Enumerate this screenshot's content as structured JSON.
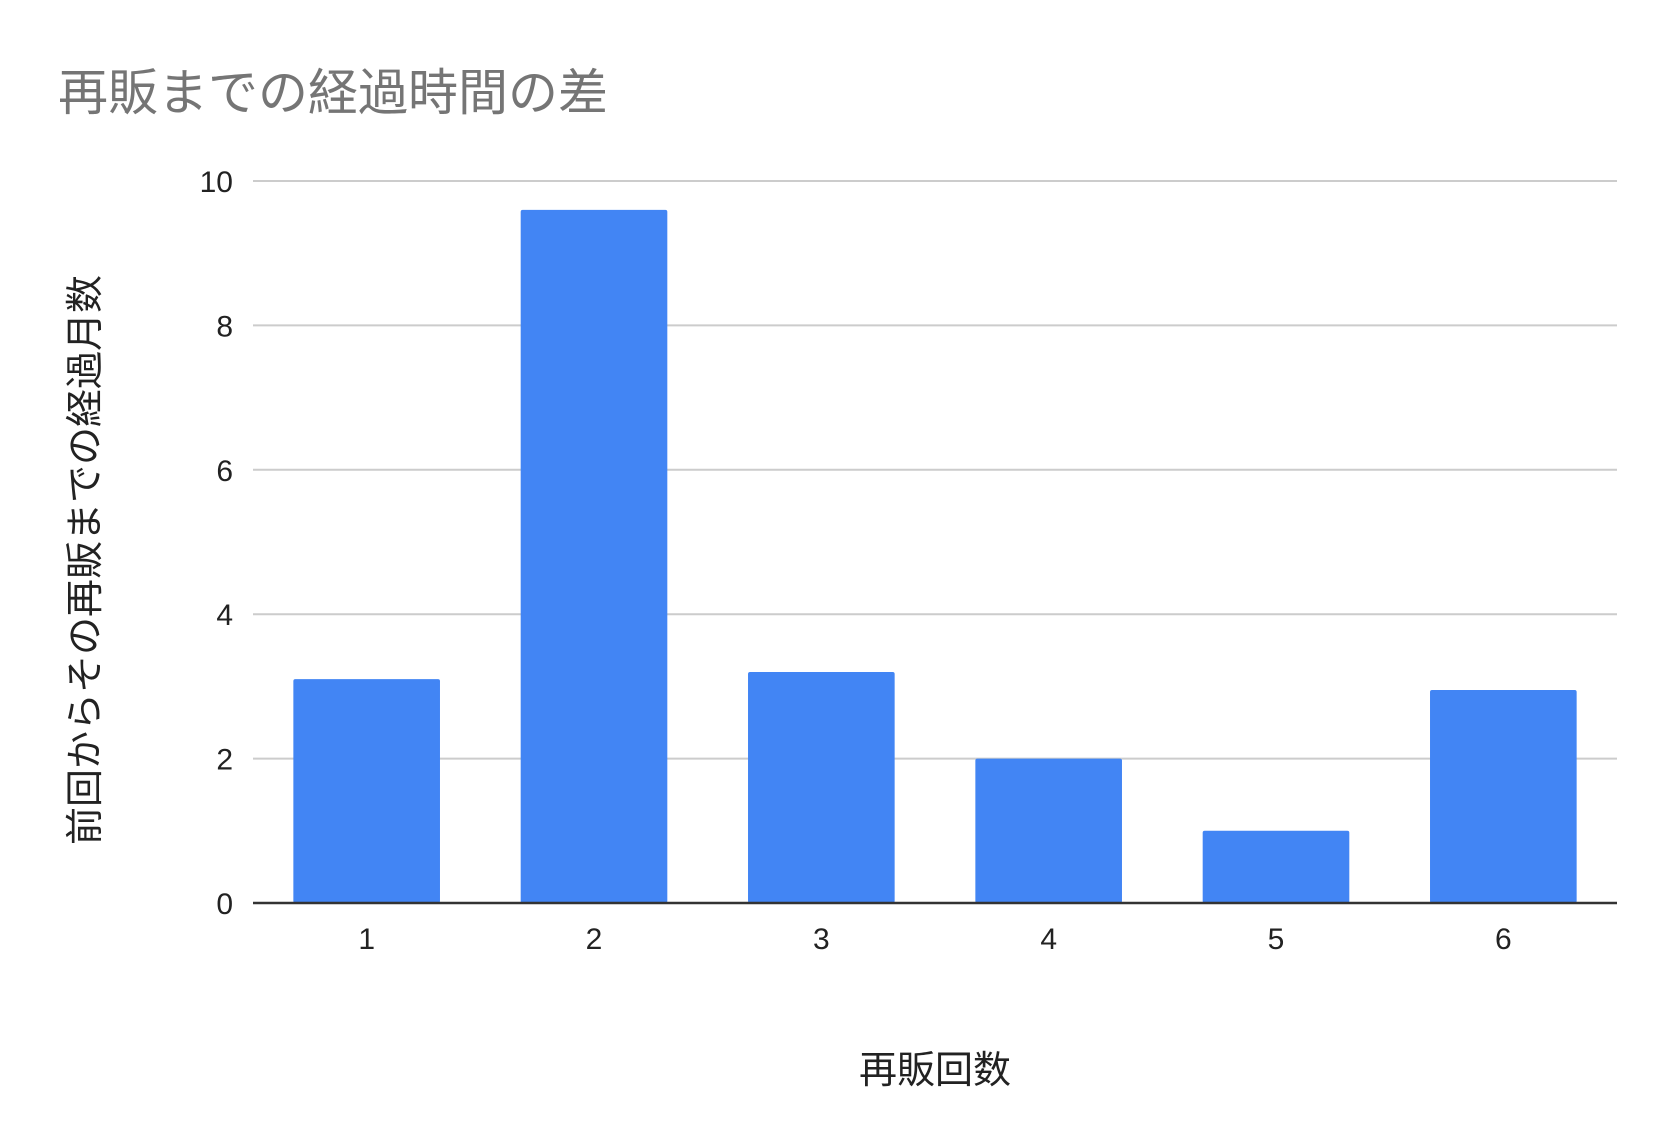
{
  "chart_data": {
    "type": "bar",
    "title": "再販までの経過時間の差",
    "xlabel": "再販回数",
    "ylabel": "前回からその再販までの経過月数",
    "categories": [
      "1",
      "2",
      "3",
      "4",
      "5",
      "6"
    ],
    "values": [
      3.1,
      9.6,
      3.2,
      2.0,
      1.0,
      2.95
    ],
    "ylim": [
      0,
      10
    ],
    "yticks": [
      "0",
      "2",
      "4",
      "6",
      "8",
      "10"
    ],
    "grid": true,
    "legend": "none",
    "colors": {
      "bar": "#4285f4",
      "title": "#757575",
      "gridline": "#cccccc",
      "baseline": "#333333"
    }
  }
}
